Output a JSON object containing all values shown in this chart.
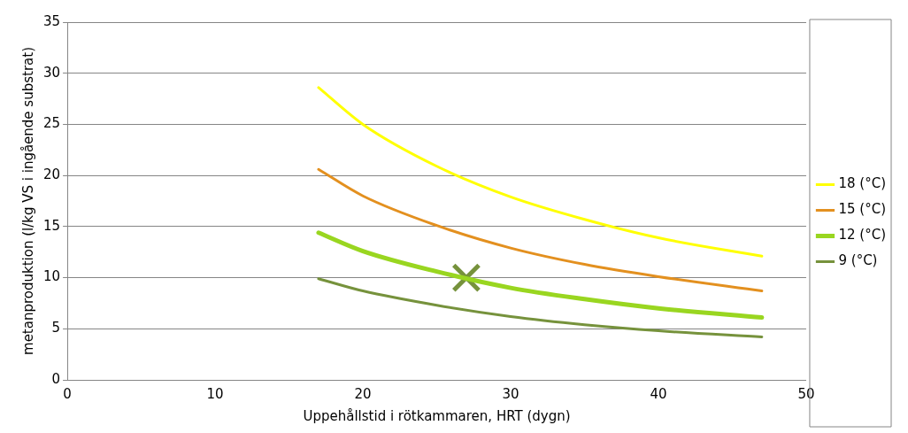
{
  "chart_data": {
    "type": "line",
    "xlabel": "Uppehållstid i rötkammaren, HRT (dygn)",
    "ylabel": "metanproduktion (l/kg VS i ingående substrat)",
    "x": [
      17,
      20,
      25,
      30,
      35,
      40,
      47
    ],
    "xlim": [
      0,
      50
    ],
    "xticks": [
      0,
      10,
      20,
      30,
      40,
      50
    ],
    "ylim": [
      0,
      35
    ],
    "yticks": [
      0,
      5,
      10,
      15,
      20,
      25,
      30,
      35
    ],
    "grid": "y",
    "legend": "right",
    "marker": "none",
    "line_style": "solid",
    "series": [
      {
        "name": "18 (°C)",
        "color": "#ffff00",
        "values": [
          28.6,
          25.0,
          20.9,
          17.9,
          15.7,
          13.9,
          12.1
        ]
      },
      {
        "name": "15 (°C)",
        "color": "#e3901f",
        "values": [
          20.6,
          18.0,
          15.1,
          12.9,
          11.3,
          10.1,
          8.7
        ]
      },
      {
        "name": "12 (°C)",
        "color": "#99d620",
        "values": [
          14.4,
          12.6,
          10.6,
          9.0,
          7.9,
          7.0,
          6.1
        ]
      },
      {
        "name": "9 (°C)",
        "color": "#76923c",
        "values": [
          9.9,
          8.7,
          7.3,
          6.2,
          5.4,
          4.8,
          4.2
        ]
      },
      {
        "type": "scatter",
        "marker": "cross",
        "color": "#76923c",
        "x": [
          27
        ],
        "values": [
          10
        ]
      }
    ]
  }
}
